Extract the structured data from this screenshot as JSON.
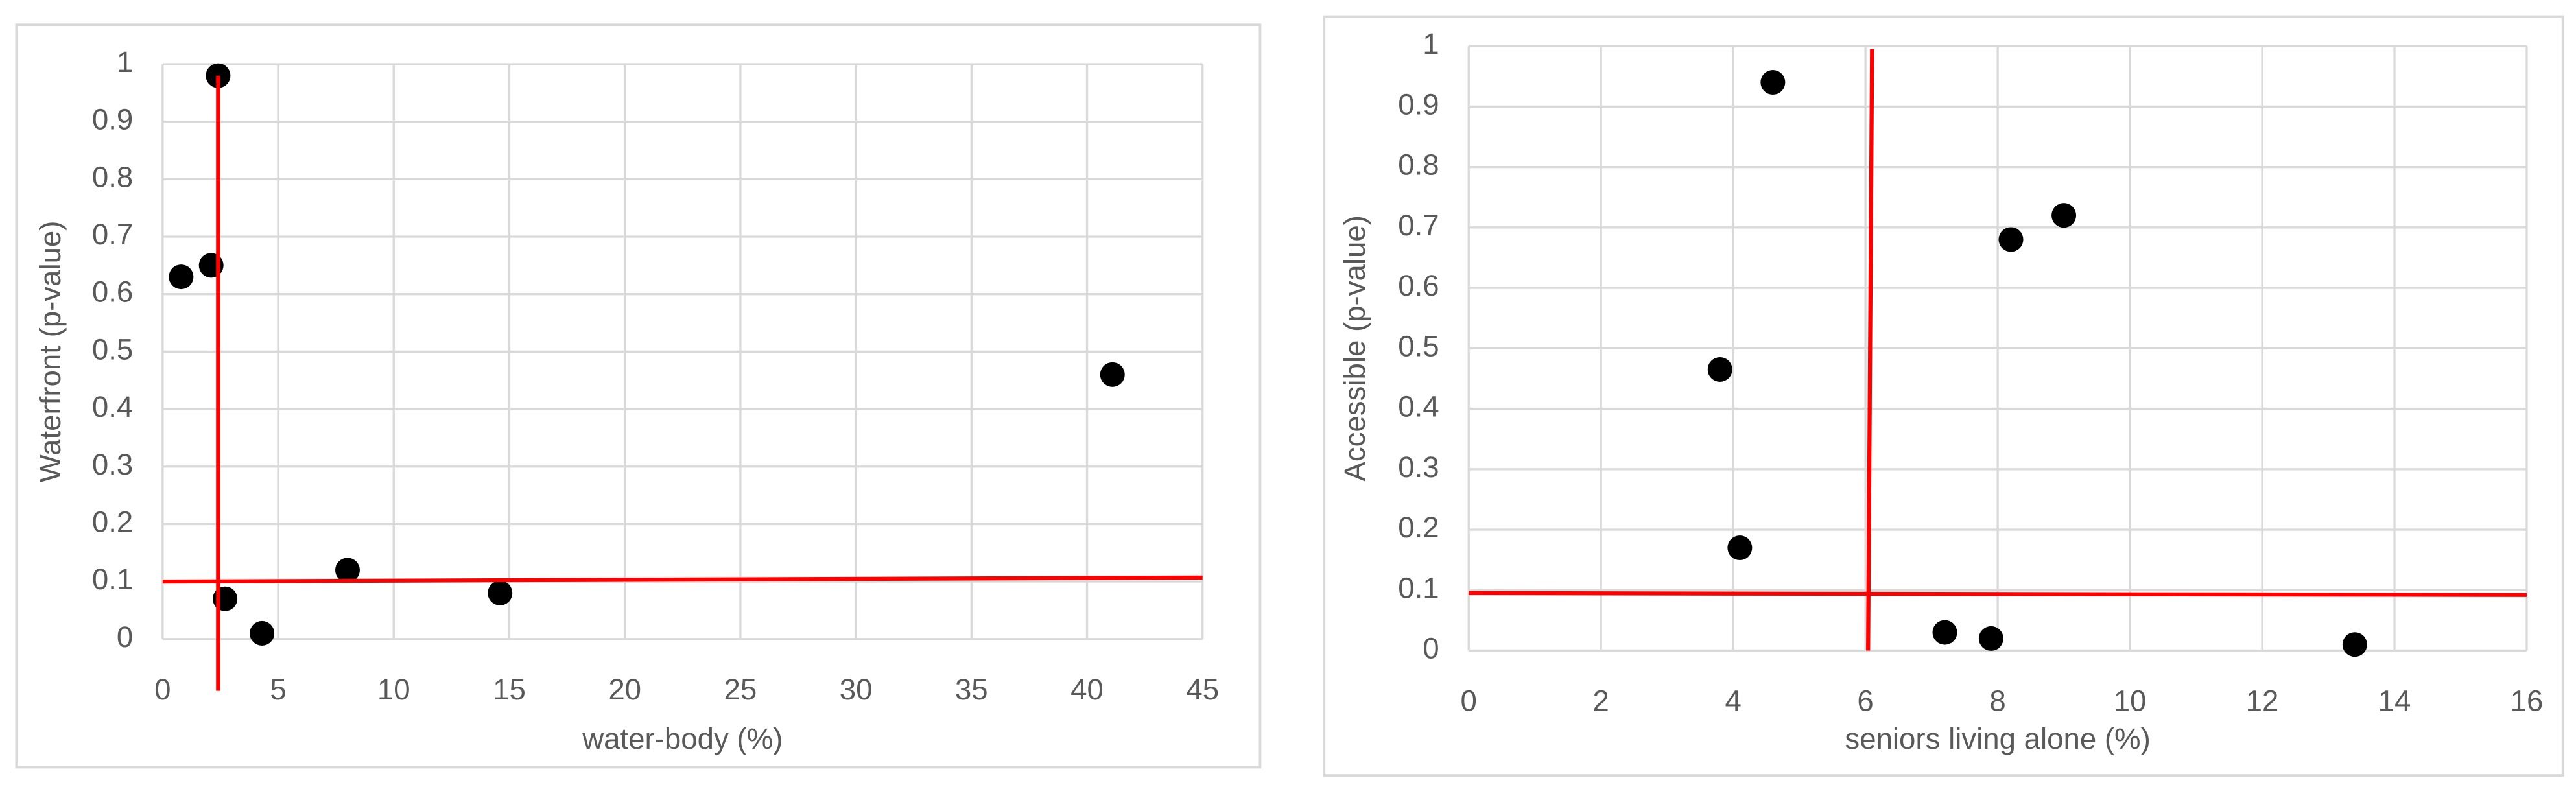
{
  "chart_data": [
    {
      "type": "scatter",
      "x_label": "water-body (%)",
      "y_label": "Waterfront (p-value)",
      "x": [
        2.4,
        0.8,
        2.1,
        41.1,
        8,
        14.6,
        2.7,
        4.3
      ],
      "values": [
        0.98,
        0.63,
        0.65,
        0.46,
        0.12,
        0.08,
        0.07,
        0.01
      ],
      "color": "#000000",
      "xlim": [
        0,
        45
      ],
      "xticks": [
        0,
        5,
        10,
        15,
        20,
        25,
        30,
        35,
        40,
        45
      ],
      "ylim": [
        0,
        1
      ],
      "yticks": [
        0,
        0.1,
        0.2,
        0.3,
        0.4,
        0.5,
        0.6,
        0.7,
        0.8,
        0.9,
        1
      ],
      "grid": true,
      "reference_lines": [
        {
          "x": [
            2.4,
            2.4
          ],
          "y": [
            -0.09,
            0.98
          ]
        },
        {
          "x": [
            0,
            45
          ],
          "y": [
            0.1,
            0.107
          ]
        }
      ],
      "reference_color": "#ff0000"
    },
    {
      "type": "scatter",
      "x_label": "seniors living alone (%)",
      "y_label": "Accessible (p-value)",
      "x": [
        4.6,
        9,
        8.2,
        3.8,
        4.1,
        7.2,
        7.9,
        13.4
      ],
      "values": [
        0.94,
        0.72,
        0.68,
        0.465,
        0.17,
        0.03,
        0.02,
        0.01
      ],
      "color": "#000000",
      "xlim": [
        0,
        16
      ],
      "xticks": [
        0,
        2,
        4,
        6,
        8,
        10,
        12,
        14,
        16
      ],
      "ylim": [
        0,
        1
      ],
      "yticks": [
        0,
        0.1,
        0.2,
        0.3,
        0.4,
        0.5,
        0.6,
        0.7,
        0.8,
        0.9,
        1
      ],
      "grid": true,
      "reference_lines": [
        {
          "x": [
            6.1,
            6.04
          ],
          "y": [
            0.995,
            0
          ]
        },
        {
          "x": [
            0,
            16
          ],
          "y": [
            0.095,
            0.092
          ]
        }
      ],
      "reference_color": "#ff0000"
    }
  ]
}
